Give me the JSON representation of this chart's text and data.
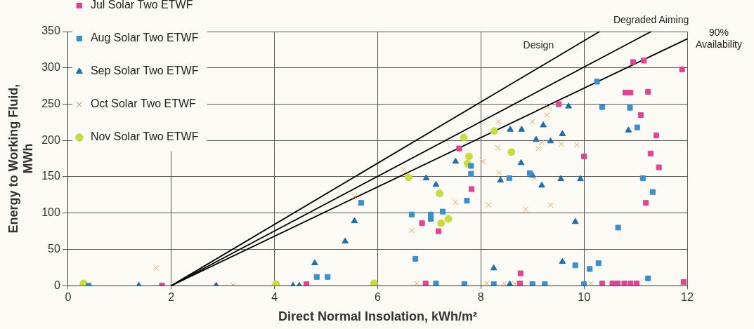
{
  "chart_data": {
    "type": "scatter",
    "xlabel": "Direct Normal Insolation, kWh/m²",
    "ylabel": "Energy to Working Fluid, MWh",
    "xlim": [
      0,
      12
    ],
    "xticks": [
      0,
      2,
      4,
      6,
      8,
      10,
      12
    ],
    "ylim": [
      0,
      350
    ],
    "yticks": [
      0,
      50,
      100,
      150,
      200,
      250,
      300,
      350
    ],
    "grid": true,
    "legend": "top left",
    "series": [
      {
        "name": "Jul Solar Two ETWF",
        "color": "#e0458f",
        "marker": "square",
        "x": [
          1.82,
          4.62,
          6.86,
          7.18,
          6.93,
          7.58,
          7.82,
          8.77,
          8.76,
          9.51,
          10.0,
          10.35,
          10.55,
          10.65,
          10.78,
          10.9,
          11.02,
          11.93,
          10.95,
          11.16,
          11.9,
          10.8,
          10.9,
          11.24,
          11.1,
          11.4,
          11.29,
          11.45,
          11.2
        ],
        "values": [
          0,
          2,
          86,
          75,
          3,
          189,
          133,
          17,
          3,
          250,
          178,
          3,
          3,
          3,
          3,
          3,
          3,
          5,
          308,
          310,
          298,
          266,
          266,
          267,
          235,
          207,
          182,
          163,
          114
        ]
      },
      {
        "name": "Aug Solar Two ETWF",
        "color": "#3a8fd0",
        "marker": "square",
        "x": [
          0.4,
          4.82,
          5.03,
          5.68,
          6.66,
          7.03,
          7.03,
          7.26,
          6.73,
          7.13,
          7.68,
          7.81,
          7.81,
          7.73,
          8.25,
          8.55,
          8.95,
          9.0,
          9.24,
          10.25,
          10.35,
          10.89,
          11.03,
          11.14,
          11.33,
          10.66,
          9.83,
          10.11,
          10.28,
          11.24,
          10.0
        ],
        "values": [
          0,
          12,
          12,
          114,
          98,
          98,
          92,
          102,
          37,
          3,
          2,
          165,
          154,
          117,
          2,
          148,
          155,
          2,
          2,
          281,
          246,
          245,
          218,
          148,
          129,
          80,
          28,
          23,
          31,
          10,
          2
        ]
      },
      {
        "name": "Sep Solar Two ETWF",
        "color": "#1f6fae",
        "marker": "triangle",
        "x": [
          1.37,
          2.87,
          4.36,
          4.48,
          4.78,
          5.37,
          5.55,
          6.94,
          7.13,
          7.51,
          8.25,
          8.56,
          8.57,
          8.79,
          9.21,
          8.78,
          8.38,
          9.0,
          9.18,
          9.07,
          9.35,
          9.7,
          9.58,
          9.55,
          9.93,
          9.83,
          9.58,
          10.86
        ],
        "values": [
          0,
          0,
          0,
          0,
          31,
          61,
          89,
          148,
          139,
          171,
          24,
          2,
          215,
          215,
          221,
          169,
          145,
          152,
          138,
          201,
          199,
          247,
          209,
          147,
          147,
          88,
          33,
          214
        ]
      },
      {
        "name": "Oct Solar Two ETWF",
        "color": "#f0a050",
        "marker": "cross",
        "x": [
          1.71,
          2.87,
          3.2,
          5.55,
          6.5,
          6.66,
          6.76,
          7.51,
          8.04,
          8.15,
          8.12,
          8.45,
          8.66,
          8.35,
          9.0,
          8.33,
          8.35,
          9.04,
          8.87,
          9.35,
          9.18,
          9.12,
          9.3,
          9.28,
          9.56,
          9.86,
          10.13
        ],
        "values": [
          24,
          1,
          1,
          123,
          160,
          76,
          3,
          115,
          171,
          111,
          3,
          3,
          3,
          226,
          226,
          190,
          156,
          148,
          105,
          111,
          197,
          189,
          246,
          235,
          195,
          194,
          3
        ]
      },
      {
        "name": "Nov Solar Two ETWF",
        "color": "#c8dc3c",
        "marker": "circle",
        "x": [
          0.3,
          4.03,
          5.93,
          6.6,
          7.2,
          7.37,
          7.23,
          7.67,
          7.77,
          7.74,
          8.26,
          8.59
        ],
        "values": [
          3,
          2,
          3,
          149,
          127,
          92,
          86,
          204,
          178,
          168,
          213,
          184
        ]
      },
      {
        "type": "line",
        "name": "Design",
        "color": "#000000",
        "marker": "none",
        "x": [
          2,
          10.3
        ],
        "values": [
          0,
          350
        ]
      },
      {
        "type": "line",
        "name": "Degraded Aiming",
        "color": "#000000",
        "marker": "none",
        "x": [
          2,
          11.3
        ],
        "values": [
          0,
          350
        ]
      },
      {
        "type": "line",
        "name": "90% Availability",
        "color": "#000000",
        "marker": "none",
        "x": [
          2,
          12
        ],
        "values": [
          0,
          340
        ]
      }
    ]
  }
}
